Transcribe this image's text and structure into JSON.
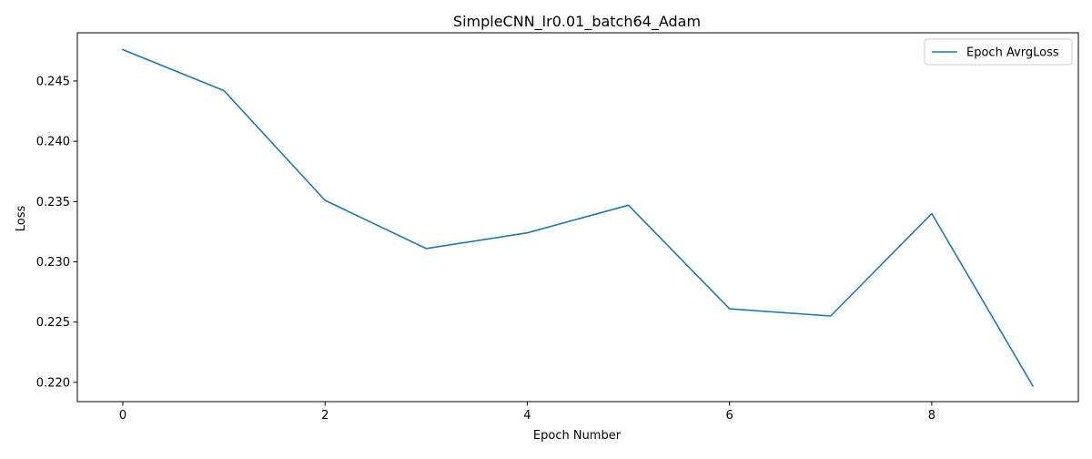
{
  "chart_data": {
    "type": "line",
    "title": "SimpleCNN_lr0.01_batch64_Adam",
    "xlabel": "Epoch Number",
    "ylabel": "Loss",
    "xlim": [
      -0.45,
      9.45
    ],
    "ylim": [
      0.2184,
      0.249
    ],
    "xticks": [
      0,
      2,
      4,
      6,
      8
    ],
    "xtick_labels": [
      "0",
      "2",
      "4",
      "6",
      "8"
    ],
    "yticks": [
      0.22,
      0.225,
      0.23,
      0.235,
      0.24,
      0.245
    ],
    "ytick_labels": [
      "0.220",
      "0.225",
      "0.230",
      "0.235",
      "0.240",
      "0.245"
    ],
    "grid": false,
    "legend": {
      "position": "top-right"
    },
    "x": [
      0,
      1,
      2,
      3,
      4,
      5,
      6,
      7,
      8,
      9
    ],
    "series": [
      {
        "name": "Epoch AvrgLoss",
        "color": "#1f77b4",
        "values": [
          0.2476,
          0.2442,
          0.2351,
          0.2311,
          0.2324,
          0.2347,
          0.2261,
          0.2255,
          0.234,
          0.2197
        ]
      }
    ]
  }
}
